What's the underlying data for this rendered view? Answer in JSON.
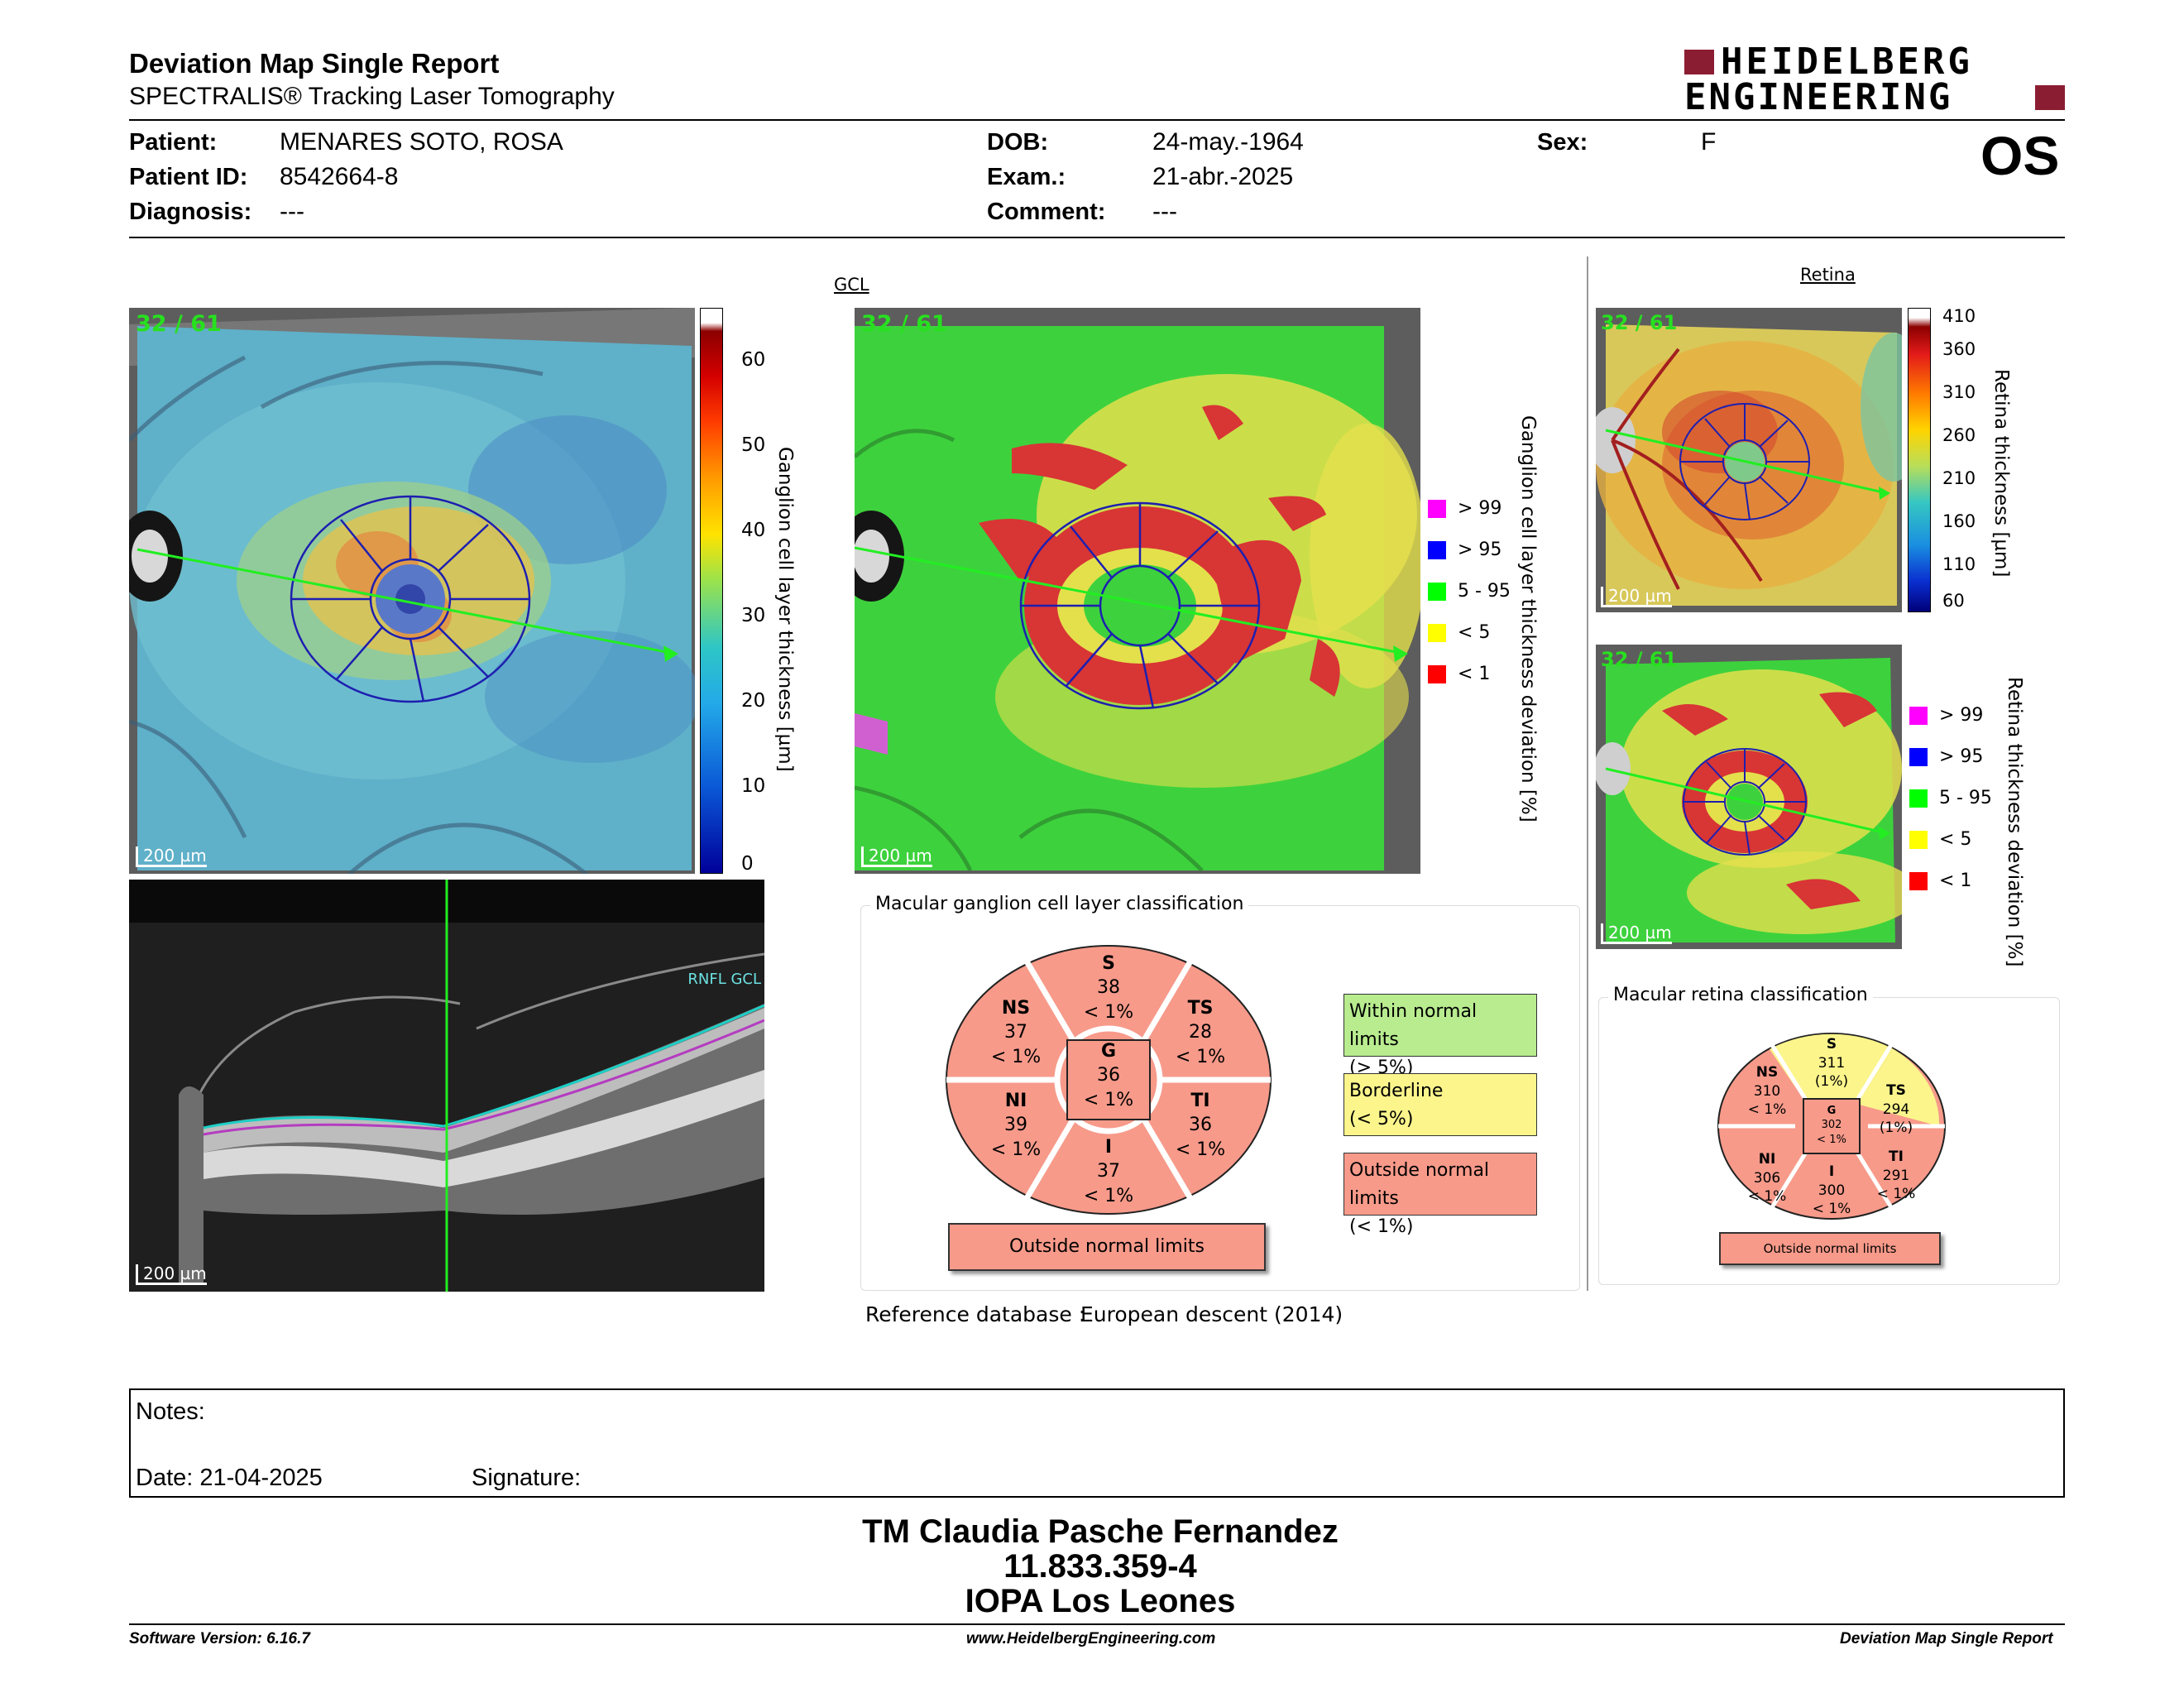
{
  "header": {
    "title": "Deviation Map Single Report",
    "subtitle": "SPECTRALIS® Tracking Laser Tomography",
    "brand_line1": "HEIDELBERG",
    "brand_line2": "ENGINEERING",
    "eye": "OS"
  },
  "patient": {
    "patient_label": "Patient:",
    "patient_value": "MENARES SOTO, ROSA",
    "id_label": "Patient ID:",
    "id_value": "8542664-8",
    "diag_label": "Diagnosis:",
    "diag_value": "---",
    "dob_label": "DOB:",
    "dob_value": "24-may.-1964",
    "exam_label": "Exam.:",
    "exam_value": "21-abr.-2025",
    "comment_label": "Comment:",
    "comment_value": "---",
    "sex_label": "Sex:",
    "sex_value": "F"
  },
  "thickness_map": {
    "counter": "32 / 61",
    "scale": "200 µm",
    "bar_label": "Ganglion cell layer thickness [µm]",
    "ticks": [
      "60",
      "50",
      "40",
      "30",
      "20",
      "10",
      "0"
    ]
  },
  "deviation_map": {
    "title": "GCL",
    "counter": "32 / 61",
    "scale": "200 µm",
    "bar_label": "Ganglion cell layer thickness deviation [%]",
    "legend": [
      {
        "label": "> 99",
        "color": "#ff00ff"
      },
      {
        "label": "> 95",
        "color": "#0000ff"
      },
      {
        "label": "5 - 95",
        "color": "#00ff00"
      },
      {
        "label": "< 5",
        "color": "#ffff00"
      },
      {
        "label": "< 1",
        "color": "#ff0000"
      }
    ]
  },
  "bscan": {
    "scale": "200 µm",
    "layer_label": "RNFL GCL"
  },
  "retina": {
    "title": "Retina",
    "counter1": "32 / 61",
    "counter2": "32 / 61",
    "scale1": "200 µm",
    "scale2": "200 µm",
    "bar_label": "Retina thickness [µm]",
    "ticks": [
      "410",
      "360",
      "310",
      "260",
      "210",
      "160",
      "110",
      "60"
    ],
    "dev_label": "Retina thickness deviation [%]",
    "legend": [
      "> 99",
      "> 95",
      "5 - 95",
      "< 5",
      "< 1"
    ]
  },
  "gcl_class": {
    "title": "Macular ganglion cell layer classification",
    "sectors": {
      "S": [
        "S",
        "38",
        "< 1%"
      ],
      "NS": [
        "NS",
        "37",
        "< 1%"
      ],
      "TS": [
        "TS",
        "28",
        "< 1%"
      ],
      "G": [
        "G",
        "36",
        "< 1%"
      ],
      "NI": [
        "NI",
        "39",
        "< 1%"
      ],
      "TI": [
        "TI",
        "36",
        "< 1%"
      ],
      "I": [
        "I",
        "37",
        "< 1%"
      ]
    },
    "result": "Outside normal limits",
    "legend": [
      {
        "line1": "Within normal limits",
        "line2": "(> 5%)",
        "color": "#b8ec8f"
      },
      {
        "line1": "Borderline",
        "line2": "(< 5%)",
        "color": "#fbf58c"
      },
      {
        "line1": "Outside normal limits",
        "line2": "(< 1%)",
        "color": "#f79a8a"
      }
    ]
  },
  "retina_class": {
    "title": "Macular retina classification",
    "sectors": {
      "S": [
        "S",
        "311",
        "(1%)"
      ],
      "NS": [
        "NS",
        "310",
        "< 1%"
      ],
      "TS": [
        "TS",
        "294",
        "(1%)"
      ],
      "G": [
        "G",
        "302",
        "< 1%"
      ],
      "NI": [
        "NI",
        "306",
        "< 1%"
      ],
      "TI": [
        "TI",
        "291",
        "< 1%"
      ],
      "I": [
        "I",
        "300",
        "< 1%"
      ]
    },
    "result": "Outside normal limits"
  },
  "reference": {
    "label": "Reference database :",
    "value": "European descent (2014)"
  },
  "notes": {
    "notes_label": "Notes:",
    "date_label": "Date: 21-04-2025",
    "signature_label": "Signature:"
  },
  "signature": {
    "name": "TM Claudia Pasche Fernandez",
    "rut": "11.833.359-4",
    "place": "IOPA Los Leones"
  },
  "footer": {
    "left": "Software Version: 6.16.7",
    "center": "www.HeidelbergEngineering.com",
    "right": "Deviation Map Single Report"
  }
}
